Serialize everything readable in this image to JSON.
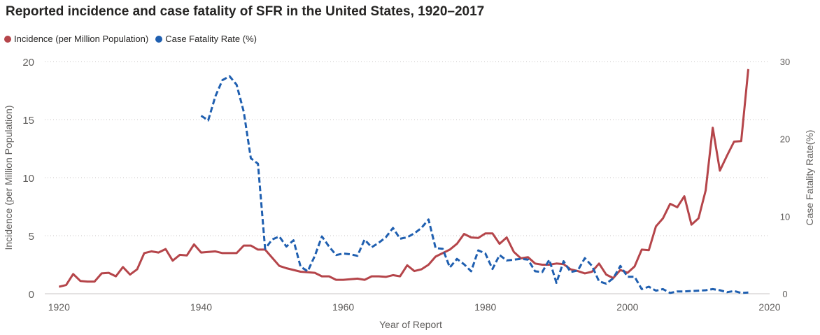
{
  "chart_data": {
    "type": "line",
    "title": "Reported incidence and case fatality of SFR in the United States, 1920–2017",
    "xlabel": "Year of Report",
    "ylabel": "Incidence (per Million Population)",
    "y2label": "Case Fatality Rate(%)",
    "xlim": [
      1918,
      2020
    ],
    "ylim": [
      0,
      20
    ],
    "y2lim": [
      0,
      30
    ],
    "x_ticks": [
      1920,
      1940,
      1960,
      1980,
      2000,
      2020
    ],
    "y_ticks": [
      0,
      5,
      10,
      15,
      20
    ],
    "y2_ticks": [
      0,
      10,
      20,
      30
    ],
    "legend_position": "top-left",
    "grid": true,
    "series": [
      {
        "name": "Incidence (per Million Population)",
        "axis": "left",
        "color": "#b5454a",
        "style": "solid",
        "x": [
          1920,
          1921,
          1922,
          1923,
          1924,
          1925,
          1926,
          1927,
          1928,
          1929,
          1930,
          1931,
          1932,
          1933,
          1934,
          1935,
          1936,
          1937,
          1938,
          1939,
          1940,
          1941,
          1942,
          1943,
          1944,
          1945,
          1946,
          1947,
          1948,
          1949,
          1950,
          1951,
          1952,
          1953,
          1954,
          1955,
          1956,
          1957,
          1958,
          1959,
          1960,
          1961,
          1962,
          1963,
          1964,
          1965,
          1966,
          1967,
          1968,
          1969,
          1970,
          1971,
          1972,
          1973,
          1974,
          1975,
          1976,
          1977,
          1978,
          1979,
          1980,
          1981,
          1982,
          1983,
          1984,
          1985,
          1986,
          1987,
          1988,
          1989,
          1990,
          1991,
          1992,
          1993,
          1994,
          1995,
          1996,
          1997,
          1998,
          1999,
          2000,
          2001,
          2002,
          2003,
          2004,
          2005,
          2006,
          2007,
          2008,
          2009,
          2010,
          2011,
          2012,
          2013,
          2014,
          2015,
          2016,
          2017
        ],
        "values": [
          0.6,
          0.75,
          1.7,
          1.1,
          1.05,
          1.05,
          1.75,
          1.8,
          1.5,
          2.3,
          1.65,
          2.1,
          3.5,
          3.65,
          3.55,
          3.85,
          2.85,
          3.35,
          3.3,
          4.25,
          3.55,
          3.6,
          3.65,
          3.5,
          3.5,
          3.5,
          4.15,
          4.15,
          3.8,
          3.8,
          3.1,
          2.4,
          2.2,
          2.05,
          1.9,
          1.85,
          1.8,
          1.5,
          1.5,
          1.2,
          1.2,
          1.25,
          1.3,
          1.2,
          1.5,
          1.5,
          1.45,
          1.6,
          1.5,
          2.45,
          1.95,
          2.1,
          2.5,
          3.2,
          3.5,
          3.8,
          4.3,
          5.15,
          4.85,
          4.8,
          5.2,
          5.2,
          4.3,
          4.85,
          3.6,
          3.05,
          3.15,
          2.6,
          2.5,
          2.5,
          2.6,
          2.55,
          2.1,
          1.95,
          1.75,
          1.9,
          2.6,
          1.65,
          1.35,
          2.05,
          1.8,
          2.35,
          3.8,
          3.75,
          5.8,
          6.5,
          7.75,
          7.45,
          8.4,
          5.95,
          6.5,
          8.9,
          14.3,
          10.6,
          11.9,
          13.1,
          13.15,
          19.35
        ]
      },
      {
        "name": "Case Fatality Rate (%)",
        "axis": "right",
        "color": "#1f5fb0",
        "style": "dashed",
        "x": [
          1940,
          1941,
          1942,
          1943,
          1944,
          1945,
          1946,
          1947,
          1948,
          1949,
          1950,
          1951,
          1952,
          1953,
          1954,
          1955,
          1956,
          1957,
          1958,
          1959,
          1960,
          1961,
          1962,
          1963,
          1964,
          1965,
          1966,
          1967,
          1968,
          1969,
          1970,
          1971,
          1972,
          1973,
          1974,
          1975,
          1976,
          1977,
          1978,
          1979,
          1980,
          1981,
          1982,
          1983,
          1984,
          1985,
          1986,
          1987,
          1988,
          1989,
          1990,
          1991,
          1992,
          1993,
          1994,
          1995,
          1996,
          1997,
          1998,
          1999,
          2000,
          2001,
          2002,
          2003,
          2004,
          2005,
          2006,
          2007,
          2008,
          2009,
          2010,
          2011,
          2012,
          2013,
          2014,
          2015,
          2016,
          2017
        ],
        "values": [
          23,
          22.4,
          25.5,
          27.6,
          28.1,
          27,
          23.5,
          17.5,
          16.8,
          5.8,
          7,
          7.4,
          6.1,
          6.9,
          3.5,
          2.9,
          4.9,
          7.4,
          6.1,
          5,
          5.2,
          5.1,
          4.9,
          7,
          6,
          6.6,
          7.3,
          8.5,
          7.1,
          7.3,
          7.8,
          8.5,
          9.6,
          5.9,
          5.8,
          3.4,
          4.5,
          3.8,
          2.9,
          5.6,
          5.2,
          3.2,
          5,
          4.3,
          4.4,
          4.5,
          4.4,
          2.9,
          2.8,
          4.4,
          1.4,
          4.2,
          2.8,
          3,
          4.6,
          3.6,
          1.6,
          1.3,
          2,
          3.6,
          2.2,
          2.2,
          0.6,
          0.9,
          0.4,
          0.6,
          0.1,
          0.3,
          0.3,
          0.35,
          0.4,
          0.45,
          0.6,
          0.45,
          0.2,
          0.35,
          0.1,
          0.15
        ]
      }
    ]
  }
}
